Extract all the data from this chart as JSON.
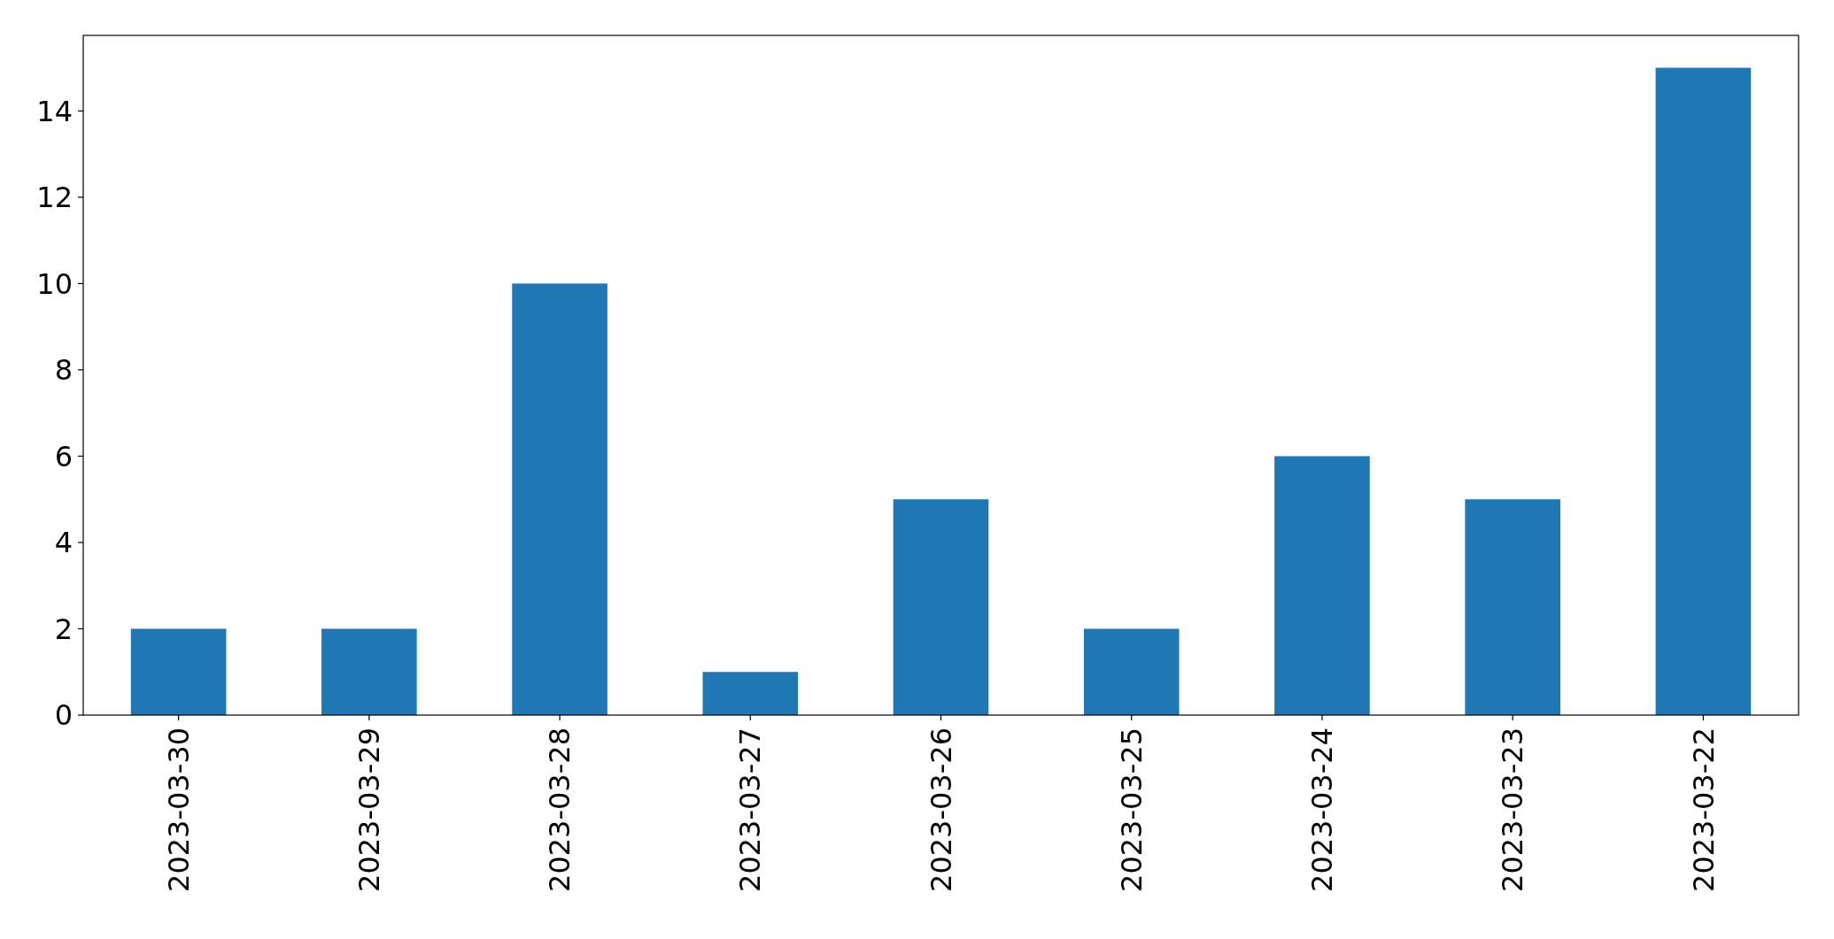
{
  "chart_data": {
    "type": "bar",
    "categories": [
      "2023-03-30",
      "2023-03-29",
      "2023-03-28",
      "2023-03-27",
      "2023-03-26",
      "2023-03-25",
      "2023-03-24",
      "2023-03-23",
      "2023-03-22"
    ],
    "values": [
      2,
      2,
      10,
      1,
      5,
      2,
      6,
      5,
      15
    ],
    "color": "#1f77b4",
    "ylim": [
      0,
      15.75
    ],
    "yticks": [
      0,
      2,
      4,
      6,
      8,
      10,
      12,
      14
    ]
  }
}
